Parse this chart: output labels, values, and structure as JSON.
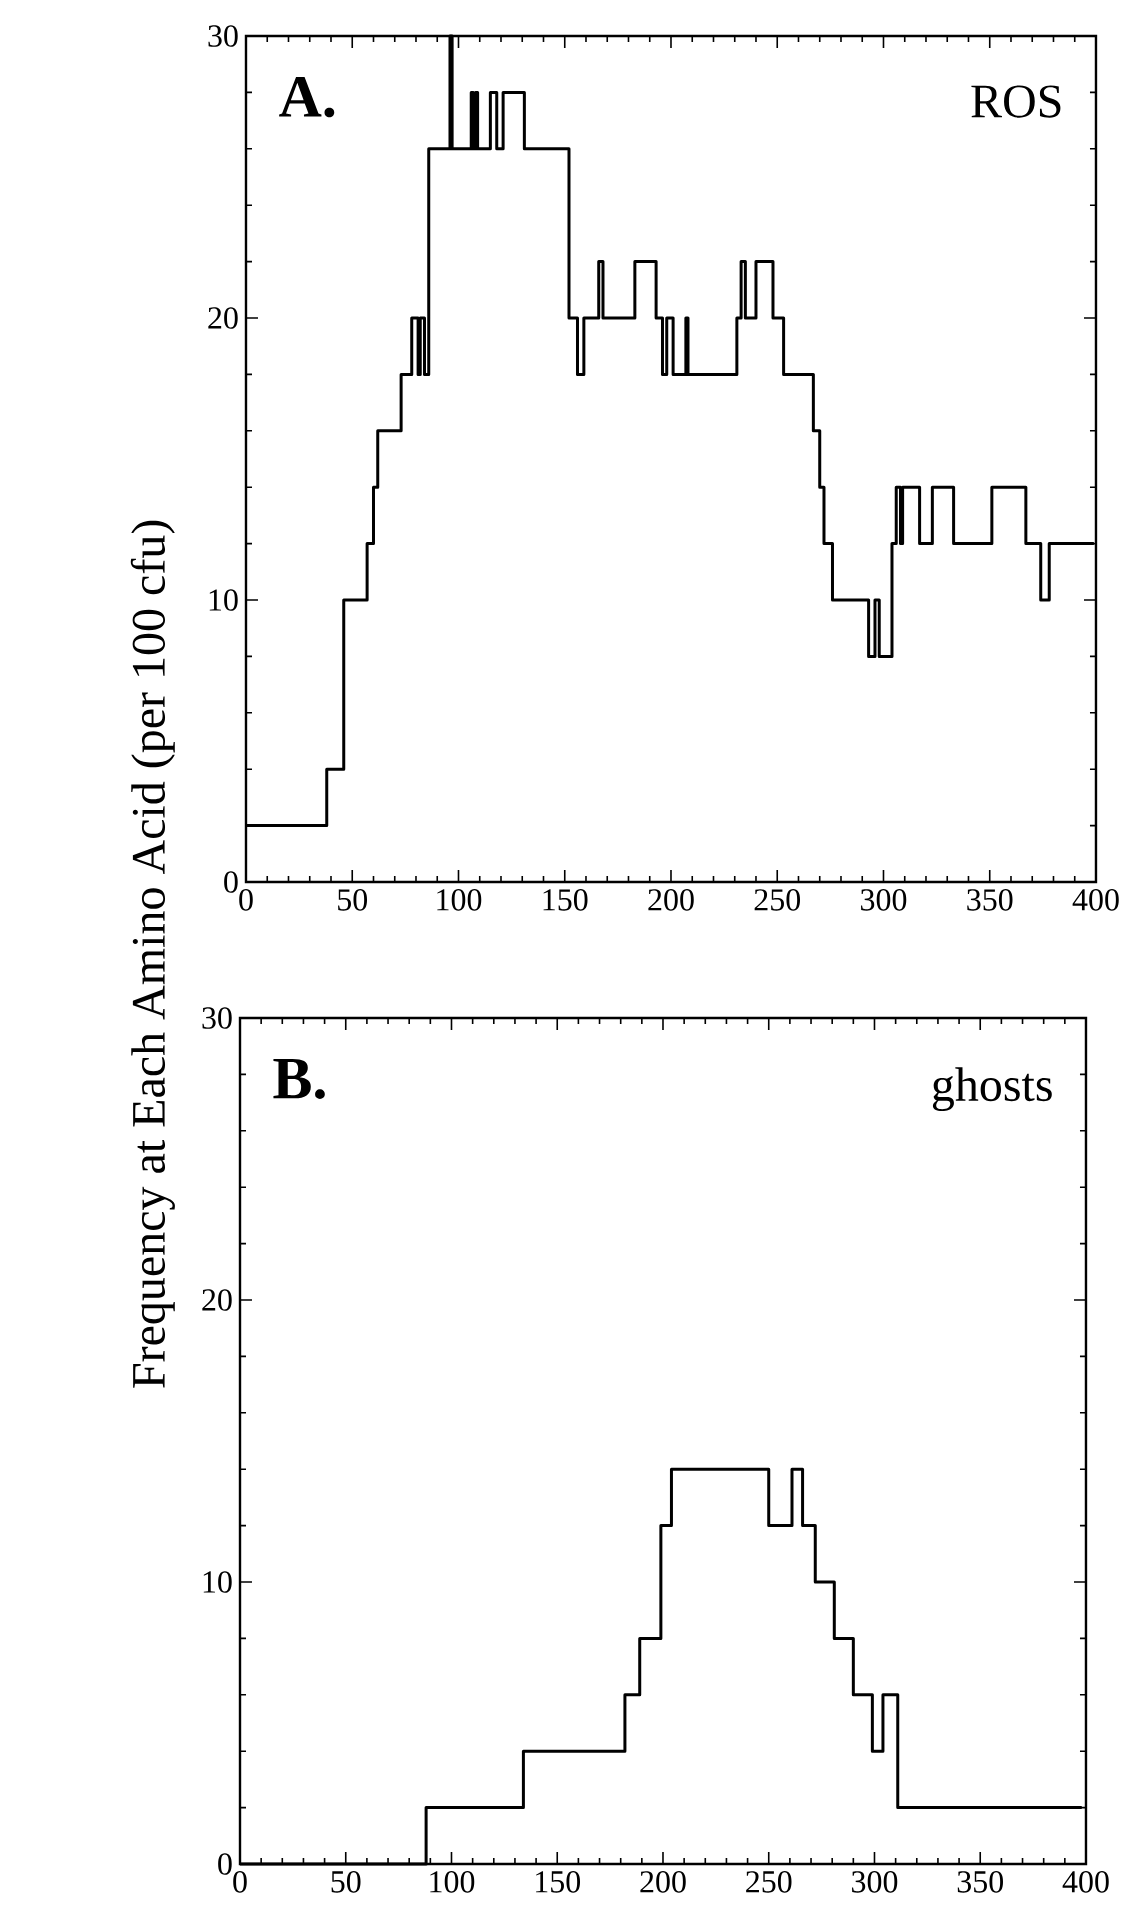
{
  "chart_data": [
    {
      "type": "step",
      "title": "A.",
      "annotations": [
        "ROS"
      ],
      "ylabel": "Frequency at Each Amino Acid (per 100 cfu)",
      "color": "#000000",
      "x": [
        0,
        38,
        46,
        57,
        60,
        62,
        73,
        78,
        81,
        82,
        84,
        86,
        96,
        97,
        106,
        107,
        108,
        109,
        115,
        118,
        121,
        131,
        152,
        156,
        159,
        166,
        168,
        183,
        193,
        196,
        198,
        201,
        207,
        208,
        231,
        233,
        235,
        240,
        248,
        253,
        267,
        270,
        272,
        276,
        293,
        296,
        298,
        304,
        306,
        308,
        309,
        317,
        323,
        333,
        351,
        367,
        374,
        378,
        399
      ],
      "values": [
        2,
        4,
        10,
        12,
        14,
        16,
        18,
        20,
        18,
        20,
        18,
        26,
        30,
        26,
        28,
        26,
        28,
        26,
        28,
        26,
        28,
        26,
        20,
        18,
        20,
        22,
        20,
        22,
        20,
        18,
        20,
        18,
        20,
        18,
        20,
        22,
        20,
        22,
        20,
        18,
        16,
        14,
        12,
        10,
        8,
        10,
        8,
        12,
        14,
        12,
        14,
        12,
        14,
        12,
        14,
        12,
        10,
        12,
        12
      ],
      "xlim": [
        0,
        400
      ],
      "ylim": [
        0,
        30
      ],
      "xticks": [
        0,
        50,
        100,
        150,
        200,
        250,
        300,
        350,
        400
      ],
      "yticks": [
        0,
        10,
        20,
        30
      ]
    },
    {
      "type": "step",
      "title": "B.",
      "annotations": [
        "ghosts"
      ],
      "color": "#000000",
      "x": [
        0,
        88,
        134,
        182,
        189,
        199,
        204,
        250,
        261,
        266,
        272,
        281,
        290,
        299,
        304,
        311,
        398
      ],
      "values": [
        0,
        2,
        4,
        6,
        8,
        12,
        14,
        12,
        14,
        12,
        10,
        8,
        6,
        4,
        6,
        2,
        2
      ],
      "xlim": [
        0,
        400
      ],
      "ylim": [
        0,
        30
      ],
      "xticks": [
        0,
        50,
        100,
        150,
        200,
        250,
        300,
        350,
        400
      ],
      "yticks": [
        0,
        10,
        20,
        30
      ]
    }
  ]
}
